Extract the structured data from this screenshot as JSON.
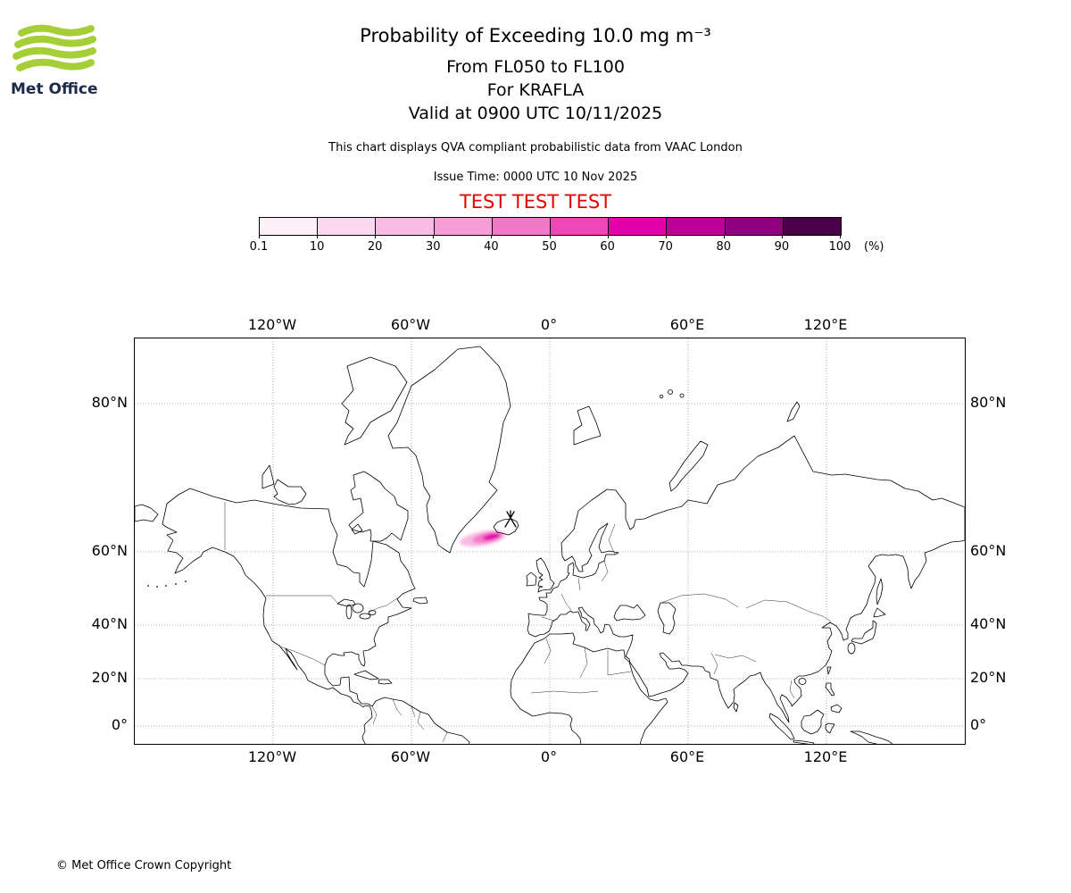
{
  "logo": {
    "text": "Met Office",
    "green": "#a6ce39",
    "navy": "#1d2a4a"
  },
  "header": {
    "title": "Probability of Exceeding 10.0 mg m⁻³",
    "subtitle1": "From FL050 to FL100",
    "subtitle2": "For KRAFLA",
    "subtitle3": "Valid at 0900 UTC 10/11/2025",
    "qva_note": "This chart displays QVA compliant probabilistic data from VAAC London",
    "issue_time": "Issue Time: 0000 UTC 10 Nov 2025",
    "test_banner": "TEST TEST TEST",
    "test_color": "#e60000"
  },
  "colorbar": {
    "ticks": [
      "0.1",
      "10",
      "20",
      "30",
      "40",
      "50",
      "60",
      "70",
      "80",
      "90",
      "100"
    ],
    "unit": "(%)",
    "colors": [
      "#fdf0f9",
      "#fbd8ef",
      "#f9bce4",
      "#f79cd7",
      "#f478c9",
      "#ef46b8",
      "#e400ab",
      "#bc0098",
      "#8e0080",
      "#4a0048"
    ]
  },
  "map": {
    "lon_labels": [
      "120°W",
      "60°W",
      "0°",
      "60°E",
      "120°E"
    ],
    "lat_labels": [
      "80°N",
      "60°N",
      "40°N",
      "20°N",
      "0°"
    ],
    "plume_colors": [
      "#f9bce4",
      "#f478c9",
      "#e400ab"
    ],
    "volcano_name": "KRAFLA"
  },
  "footer": {
    "copyright": "© Met Office Crown Copyright"
  }
}
